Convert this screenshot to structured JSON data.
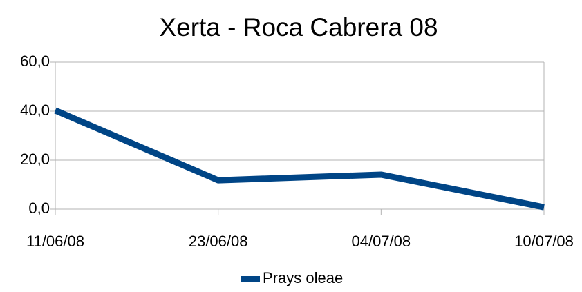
{
  "chart_data": {
    "type": "line",
    "title": "Xerta - Roca Cabrera 08",
    "categories": [
      "11/06/08",
      "23/06/08",
      "04/07/08",
      "10/07/08"
    ],
    "series": [
      {
        "name": "Prays oleae",
        "color": "#004586",
        "values": [
          40.3,
          11.8,
          14.1,
          0.8
        ]
      }
    ],
    "ylim": [
      0,
      60
    ],
    "yticks": [
      {
        "value": 0,
        "label": "0,0"
      },
      {
        "value": 20,
        "label": "20,0"
      },
      {
        "value": 40,
        "label": "40,0"
      },
      {
        "value": 60,
        "label": "60,0"
      }
    ],
    "grid": true,
    "legend": "bottom"
  }
}
